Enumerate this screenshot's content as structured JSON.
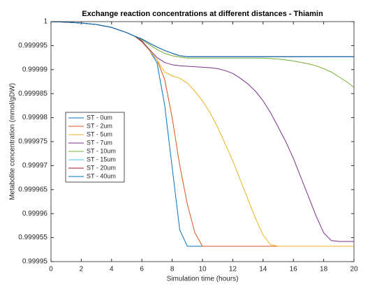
{
  "chart_data": {
    "type": "line",
    "title": "Exchange reaction concentrations at different distances - Thiamin",
    "x_label": "Simulation time (hours)",
    "y_label": "Metabolite concentration (mmol/gDW)",
    "x": [
      0,
      1,
      2,
      3,
      4,
      5,
      5.5,
      6,
      6.5,
      7,
      7.5,
      8,
      8.5,
      9,
      9.5,
      10,
      10.5,
      11,
      11.5,
      12,
      12.5,
      13,
      13.5,
      14,
      14.5,
      15,
      15.5,
      16,
      16.5,
      17,
      17.5,
      18,
      18.5,
      19,
      19.5,
      20
    ],
    "xlim": [
      0,
      20
    ],
    "xticks": [
      0,
      2,
      4,
      6,
      8,
      10,
      12,
      14,
      16,
      18,
      20
    ],
    "ylim": [
      0.99995,
      1
    ],
    "yticks": [
      0.99995,
      0.999955,
      0.99996,
      0.999965,
      0.99997,
      0.999975,
      0.99998,
      0.999985,
      0.99999,
      0.999995,
      1
    ],
    "grid": false,
    "legend": "west",
    "series": [
      {
        "name": "ST - 0um",
        "color": "#0072bd",
        "values": [
          1,
          0.9999999,
          0.9999997,
          0.9999994,
          0.9999988,
          0.9999977,
          0.999997,
          0.9999958,
          0.999994,
          0.9999914,
          0.9999827,
          0.9999696,
          0.9999566,
          0.9999532,
          0.9999532,
          0.9999532,
          0.9999532,
          0.9999532,
          0.9999532,
          0.9999532,
          0.9999532,
          0.9999532,
          0.9999532,
          0.9999532,
          0.9999532,
          0.9999532,
          0.9999532,
          0.9999532,
          0.9999532,
          0.9999532,
          0.9999532,
          0.9999532,
          0.9999532,
          0.9999532,
          0.9999532,
          0.9999532
        ]
      },
      {
        "name": "ST - 2um",
        "color": "#d95319",
        "values": [
          1,
          0.9999999,
          0.9999997,
          0.9999994,
          0.9999988,
          0.9999977,
          0.999997,
          0.9999958,
          0.999994,
          0.999992,
          0.999988,
          0.99998,
          0.99997,
          0.999962,
          0.999956,
          0.9999532,
          0.9999532,
          0.9999532,
          0.9999532,
          0.9999532,
          0.9999532,
          0.9999532,
          0.9999532,
          0.9999532,
          0.9999532,
          0.9999532,
          0.9999532,
          0.9999532,
          0.9999532,
          0.9999532,
          0.9999532,
          0.9999532,
          0.9999532,
          0.9999532,
          0.9999532,
          0.9999532
        ]
      },
      {
        "name": "ST - 5um",
        "color": "#edb120",
        "values": [
          1,
          0.9999999,
          0.9999997,
          0.9999994,
          0.9999988,
          0.9999977,
          0.999997,
          0.999996,
          0.999994,
          0.999992,
          0.9999895,
          0.9999887,
          0.9999882,
          0.9999872,
          0.9999855,
          0.9999835,
          0.999981,
          0.999978,
          0.9999745,
          0.999971,
          0.999967,
          0.999963,
          0.999959,
          0.9999555,
          0.9999535,
          0.9999532,
          0.9999532,
          0.9999532,
          0.9999532,
          0.9999532,
          0.9999532,
          0.9999532,
          0.9999532,
          0.9999532,
          0.9999532,
          0.9999532
        ]
      },
      {
        "name": "ST - 7um",
        "color": "#7e2f8e",
        "values": [
          1,
          0.9999999,
          0.9999997,
          0.9999994,
          0.9999988,
          0.9999977,
          0.999997,
          0.999996,
          0.9999942,
          0.9999925,
          0.9999915,
          0.999991,
          0.9999908,
          0.9999907,
          0.9999906,
          0.9999905,
          0.9999904,
          0.9999902,
          0.9999898,
          0.9999892,
          0.9999882,
          0.999987,
          0.9999855,
          0.9999835,
          0.999981,
          0.999978,
          0.999975,
          0.9999715,
          0.9999675,
          0.9999635,
          0.9999595,
          0.999956,
          0.9999544,
          0.9999542,
          0.9999542,
          0.9999542
        ]
      },
      {
        "name": "ST - 10um",
        "color": "#77ac30",
        "values": [
          1,
          0.9999999,
          0.9999997,
          0.9999994,
          0.9999988,
          0.9999977,
          0.999997,
          0.9999962,
          0.9999952,
          0.9999942,
          0.9999934,
          0.9999929,
          0.9999926,
          0.9999924,
          0.9999924,
          0.9999924,
          0.9999924,
          0.9999924,
          0.9999924,
          0.9999924,
          0.9999924,
          0.9999924,
          0.9999924,
          0.9999924,
          0.9999923,
          0.9999922,
          0.999992,
          0.9999918,
          0.9999915,
          0.9999912,
          0.9999908,
          0.9999902,
          0.9999895,
          0.9999885,
          0.9999875,
          0.9999863
        ]
      },
      {
        "name": "ST - 15um",
        "color": "#4dbeee",
        "values": [
          1,
          0.9999999,
          0.9999997,
          0.9999994,
          0.9999988,
          0.9999977,
          0.999997,
          0.9999964,
          0.9999955,
          0.9999947,
          0.999994,
          0.9999934,
          0.9999929,
          0.9999927,
          0.9999927,
          0.9999927,
          0.9999927,
          0.9999927,
          0.9999927,
          0.9999927,
          0.9999927,
          0.9999927,
          0.9999927,
          0.9999927,
          0.9999927,
          0.9999927,
          0.9999927,
          0.9999927,
          0.9999927,
          0.9999927,
          0.9999927,
          0.9999927,
          0.9999927,
          0.9999927,
          0.9999927,
          0.9999927
        ]
      },
      {
        "name": "ST - 20um",
        "color": "#a2142f",
        "values": [
          1,
          0.9999999,
          0.9999997,
          0.9999994,
          0.9999988,
          0.9999977,
          0.999997,
          0.9999964,
          0.9999955,
          0.9999947,
          0.999994,
          0.9999934,
          0.9999929,
          0.9999927,
          0.9999927,
          0.9999927,
          0.9999927,
          0.9999927,
          0.9999927,
          0.9999927,
          0.9999927,
          0.9999927,
          0.9999927,
          0.9999927,
          0.9999927,
          0.9999927,
          0.9999927,
          0.9999927,
          0.9999927,
          0.9999927,
          0.9999927,
          0.9999927,
          0.9999927,
          0.9999927,
          0.9999927,
          0.9999927
        ]
      },
      {
        "name": "ST - 40um",
        "color": "#0072bd",
        "values": [
          1,
          0.9999999,
          0.9999997,
          0.9999994,
          0.9999988,
          0.9999977,
          0.999997,
          0.9999964,
          0.9999955,
          0.9999947,
          0.999994,
          0.9999934,
          0.9999929,
          0.9999927,
          0.9999927,
          0.9999927,
          0.9999927,
          0.9999927,
          0.9999927,
          0.9999927,
          0.9999927,
          0.9999927,
          0.9999927,
          0.9999927,
          0.9999927,
          0.9999927,
          0.9999927,
          0.9999927,
          0.9999927,
          0.9999927,
          0.9999927,
          0.9999927,
          0.9999927,
          0.9999927,
          0.9999927,
          0.9999927
        ]
      }
    ]
  }
}
